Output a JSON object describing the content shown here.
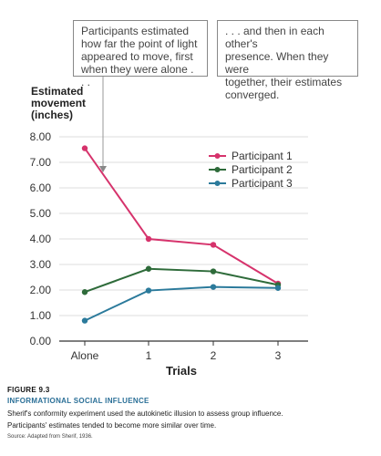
{
  "callouts": {
    "left": [
      "Participants estimated",
      "how far the point of light",
      "appeared to move, first",
      "when they were alone . . ."
    ],
    "right": [
      ". . . and then in each other's",
      "presence. When they were",
      "together, their estimates",
      "converged."
    ]
  },
  "caption": {
    "figure_label": "FIGURE 9.3",
    "title": "INFORMATIONAL SOCIAL INFLUENCE",
    "line1": "Sherif's conformity experiment used the autokinetic illusion to assess group influence.",
    "line2": "Participants' estimates tended to become more similar over time.",
    "source": "Source: Adapted from Sherif, 1936."
  },
  "chart_data": {
    "type": "line",
    "ylabel_lines": [
      "Estimated",
      "movement",
      "(inches)"
    ],
    "xlabel": "Trials",
    "categories": [
      "Alone",
      "1",
      "2",
      "3"
    ],
    "ylim": [
      0,
      8
    ],
    "yticks": [
      "0.00",
      "1.00",
      "2.00",
      "3.00",
      "4.00",
      "5.00",
      "6.00",
      "7.00",
      "8.00"
    ],
    "grid": true,
    "legend_position": "top-right",
    "series": [
      {
        "name": "Participant 1",
        "color": "#d6336c",
        "values": [
          7.55,
          4.0,
          3.77,
          2.25
        ]
      },
      {
        "name": "Participant 2",
        "color": "#2e6b3a",
        "values": [
          1.92,
          2.83,
          2.73,
          2.2
        ]
      },
      {
        "name": "Participant 3",
        "color": "#2b7a9b",
        "values": [
          0.8,
          1.98,
          2.12,
          2.08
        ]
      }
    ]
  }
}
